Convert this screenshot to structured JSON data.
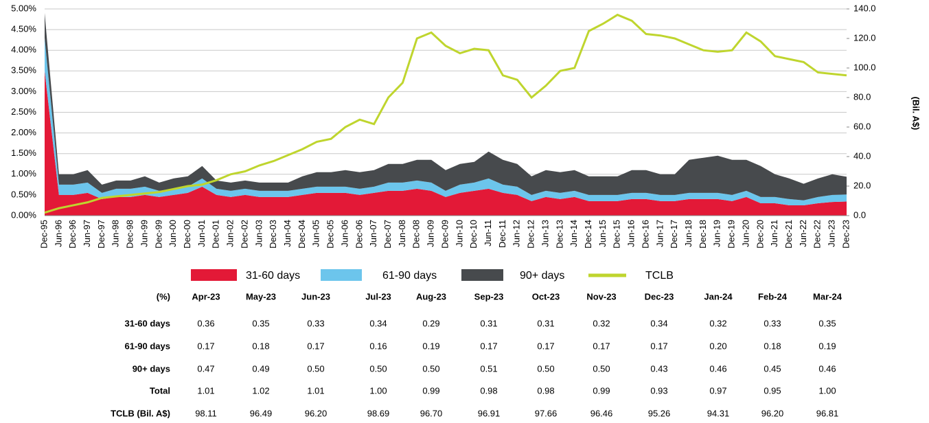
{
  "chart_data": {
    "type": "stacked-area-line",
    "categories": [
      "Dec-95",
      "Jun-96",
      "Dec-96",
      "Jun-97",
      "Dec-97",
      "Jun-98",
      "Dec-98",
      "Jun-99",
      "Dec-99",
      "Jun-00",
      "Dec-00",
      "Jun-01",
      "Dec-01",
      "Jun-02",
      "Dec-02",
      "Jun-03",
      "Dec-03",
      "Jun-04",
      "Dec-04",
      "Jun-05",
      "Dec-05",
      "Jun-06",
      "Dec-06",
      "Jun-07",
      "Dec-07",
      "Jun-08",
      "Dec-08",
      "Jun-09",
      "Dec-09",
      "Jun-10",
      "Dec-10",
      "Jun-11",
      "Dec-11",
      "Jun-12",
      "Dec-12",
      "Jun-13",
      "Dec-13",
      "Jun-14",
      "Dec-14",
      "Jun-15",
      "Dec-15",
      "Jun-16",
      "Dec-16",
      "Jun-17",
      "Dec-17",
      "Jun-18",
      "Dec-18",
      "Jun-19",
      "Dec-19",
      "Jun-20",
      "Dec-20",
      "Jun-21",
      "Dec-21",
      "Jun-22",
      "Dec-22",
      "Jun-23",
      "Dec-23"
    ],
    "series": [
      {
        "name": "31-60 days",
        "color": "#e31937",
        "values": [
          3.5,
          0.5,
          0.5,
          0.55,
          0.4,
          0.45,
          0.45,
          0.5,
          0.45,
          0.5,
          0.55,
          0.7,
          0.5,
          0.45,
          0.5,
          0.45,
          0.45,
          0.45,
          0.5,
          0.55,
          0.55,
          0.55,
          0.5,
          0.55,
          0.6,
          0.6,
          0.65,
          0.6,
          0.45,
          0.55,
          0.6,
          0.65,
          0.55,
          0.5,
          0.35,
          0.45,
          0.4,
          0.45,
          0.35,
          0.35,
          0.35,
          0.4,
          0.4,
          0.35,
          0.35,
          0.4,
          0.4,
          0.4,
          0.35,
          0.45,
          0.3,
          0.3,
          0.25,
          0.25,
          0.3,
          0.33,
          0.34
        ]
      },
      {
        "name": "61-90 days",
        "color": "#6cc5ec",
        "values": [
          0.8,
          0.25,
          0.25,
          0.25,
          0.15,
          0.2,
          0.2,
          0.2,
          0.15,
          0.15,
          0.15,
          0.2,
          0.15,
          0.15,
          0.15,
          0.15,
          0.15,
          0.15,
          0.15,
          0.15,
          0.15,
          0.15,
          0.15,
          0.15,
          0.2,
          0.2,
          0.2,
          0.2,
          0.15,
          0.2,
          0.2,
          0.25,
          0.2,
          0.2,
          0.15,
          0.15,
          0.15,
          0.15,
          0.15,
          0.15,
          0.15,
          0.15,
          0.15,
          0.15,
          0.15,
          0.15,
          0.15,
          0.15,
          0.15,
          0.15,
          0.15,
          0.15,
          0.15,
          0.12,
          0.15,
          0.17,
          0.17
        ]
      },
      {
        "name": "90+ days",
        "color": "#474a4d",
        "values": [
          0.6,
          0.25,
          0.25,
          0.3,
          0.2,
          0.2,
          0.2,
          0.25,
          0.2,
          0.25,
          0.25,
          0.3,
          0.2,
          0.2,
          0.2,
          0.2,
          0.2,
          0.2,
          0.3,
          0.35,
          0.35,
          0.4,
          0.4,
          0.4,
          0.45,
          0.45,
          0.5,
          0.55,
          0.5,
          0.5,
          0.5,
          0.65,
          0.6,
          0.55,
          0.45,
          0.5,
          0.5,
          0.5,
          0.45,
          0.45,
          0.45,
          0.55,
          0.55,
          0.5,
          0.5,
          0.8,
          0.85,
          0.9,
          0.85,
          0.75,
          0.75,
          0.55,
          0.5,
          0.4,
          0.45,
          0.5,
          0.43
        ]
      },
      {
        "name": "TCLB",
        "color": "#bfd52e",
        "axis": "y2",
        "values": [
          2,
          5,
          7,
          9,
          12,
          13,
          14,
          15,
          16,
          18,
          20,
          21,
          24,
          28,
          30,
          34,
          37,
          41,
          45,
          50,
          52,
          60,
          65,
          62,
          80,
          90,
          120,
          124,
          115,
          110,
          113,
          112,
          95,
          92,
          80,
          88,
          98,
          100,
          125,
          130,
          136,
          132,
          123,
          122,
          120,
          116,
          112,
          111,
          112,
          124,
          118,
          108,
          106,
          104,
          97,
          96,
          95
        ]
      }
    ],
    "ylim": [
      0,
      5
    ],
    "yticks": [
      {
        "value": 0,
        "label": "0.00%"
      },
      {
        "value": 0.5,
        "label": "0.50%"
      },
      {
        "value": 1,
        "label": "1.00%"
      },
      {
        "value": 1.5,
        "label": "1.50%"
      },
      {
        "value": 2,
        "label": "2.00%"
      },
      {
        "value": 2.5,
        "label": "2.50%"
      },
      {
        "value": 3,
        "label": "3.00%"
      },
      {
        "value": 3.5,
        "label": "3.50%"
      },
      {
        "value": 4,
        "label": "4.00%"
      },
      {
        "value": 4.5,
        "label": "4.50%"
      },
      {
        "value": 5,
        "label": "5.00%"
      }
    ],
    "y2lim": [
      0,
      140
    ],
    "y2ticks": [
      {
        "value": 0,
        "label": "0.0"
      },
      {
        "value": 20,
        "label": "20.0"
      },
      {
        "value": 40,
        "label": "40.0"
      },
      {
        "value": 60,
        "label": "60.0"
      },
      {
        "value": 80,
        "label": "80.0"
      },
      {
        "value": 100,
        "label": "100.0"
      },
      {
        "value": 120,
        "label": "120.0"
      },
      {
        "value": 140,
        "label": "140.0"
      }
    ],
    "y2label": "(Bil. A$)",
    "grid": true
  },
  "table": {
    "header": [
      "(%)",
      "Apr-23",
      "May-23",
      "Jun-23",
      "Jul-23",
      "Aug-23",
      "Sep-23",
      "Oct-23",
      "Nov-23",
      "Dec-23",
      "Jan-24",
      "Feb-24",
      "Mar-24"
    ],
    "rows": [
      [
        "31-60 days",
        "0.36",
        "0.35",
        "0.33",
        "0.34",
        "0.29",
        "0.31",
        "0.31",
        "0.32",
        "0.34",
        "0.32",
        "0.33",
        "0.35"
      ],
      [
        "61-90 days",
        "0.17",
        "0.18",
        "0.17",
        "0.16",
        "0.19",
        "0.17",
        "0.17",
        "0.17",
        "0.17",
        "0.20",
        "0.18",
        "0.19"
      ],
      [
        "90+ days",
        "0.47",
        "0.49",
        "0.50",
        "0.50",
        "0.50",
        "0.51",
        "0.50",
        "0.50",
        "0.43",
        "0.46",
        "0.45",
        "0.46"
      ],
      [
        "Total",
        "1.01",
        "1.02",
        "1.01",
        "1.00",
        "0.99",
        "0.98",
        "0.98",
        "0.99",
        "0.93",
        "0.97",
        "0.95",
        "1.00"
      ],
      [
        "TCLB (Bil. A$)",
        "98.11",
        "96.49",
        "96.20",
        "98.69",
        "96.70",
        "96.91",
        "97.66",
        "96.46",
        "95.26",
        "94.31",
        "96.20",
        "96.81"
      ]
    ]
  }
}
